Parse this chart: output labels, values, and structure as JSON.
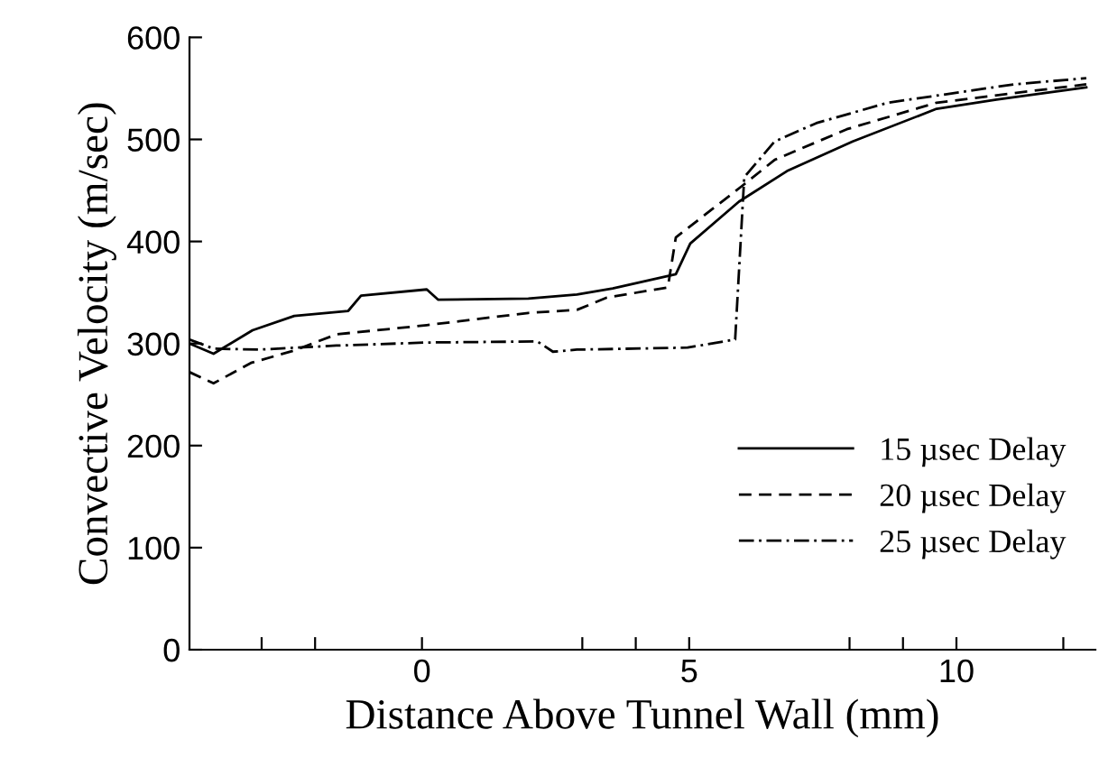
{
  "chart_data": {
    "type": "line",
    "xlabel": "Distance Above Tunnel Wall (mm)",
    "ylabel": "Convective Velocity (m/sec)",
    "xlim": [
      -4.35,
      12.6
    ],
    "ylim": [
      0,
      600
    ],
    "xticks": [
      {
        "value": -3,
        "label": null
      },
      {
        "value": -2,
        "label": null
      },
      0,
      {
        "value": 3,
        "label": null
      },
      {
        "value": 4,
        "label": null
      },
      5,
      {
        "value": 8,
        "label": null
      },
      {
        "value": 9,
        "label": null
      },
      10,
      {
        "value": 12,
        "label": null
      }
    ],
    "yticks": [
      0,
      100,
      200,
      300,
      400,
      500,
      600
    ],
    "grid": false,
    "legend": "bottom right",
    "marker": "none",
    "series": [
      {
        "name": "15 µsec Delay",
        "color": "#000000",
        "line_style": "solid",
        "x": [
          -4.35,
          -3.9,
          -3.17,
          -2.39,
          -1.38,
          -1.14,
          0.09,
          0.3,
          1.99,
          2.9,
          3.57,
          4.75,
          5.02,
          5.93,
          6.83,
          8.06,
          9.63,
          10.75,
          12.43
        ],
        "values": [
          300,
          290,
          313,
          327,
          332,
          347,
          353,
          343,
          344,
          348,
          354,
          368,
          398,
          439,
          469,
          498,
          530,
          539,
          551
        ]
      },
      {
        "name": "20 µsec Delay",
        "color": "#000000",
        "line_style": "dashed",
        "x": [
          -4.35,
          -3.9,
          -3.2,
          -2.4,
          -1.6,
          0.09,
          1.99,
          2.9,
          3.46,
          4.6,
          4.75,
          5.98,
          6.6,
          7.95,
          9.63,
          12.43
        ],
        "values": [
          272,
          261,
          281,
          293,
          309,
          318,
          330,
          333,
          345,
          355,
          404,
          454,
          480,
          510,
          536,
          554
        ]
      },
      {
        "name": "25 µsec Delay",
        "color": "#000000",
        "line_style": "dashdot",
        "x": [
          -4.35,
          -3.9,
          -3.06,
          -1.6,
          0.09,
          2.16,
          2.45,
          2.9,
          4.97,
          5.86,
          6.03,
          6.6,
          7.38,
          8.72,
          11.08,
          12.43
        ],
        "values": [
          304,
          295,
          294,
          298,
          301,
          302,
          292,
          294,
          296,
          304,
          463,
          498,
          516,
          536,
          554,
          560
        ]
      }
    ]
  }
}
